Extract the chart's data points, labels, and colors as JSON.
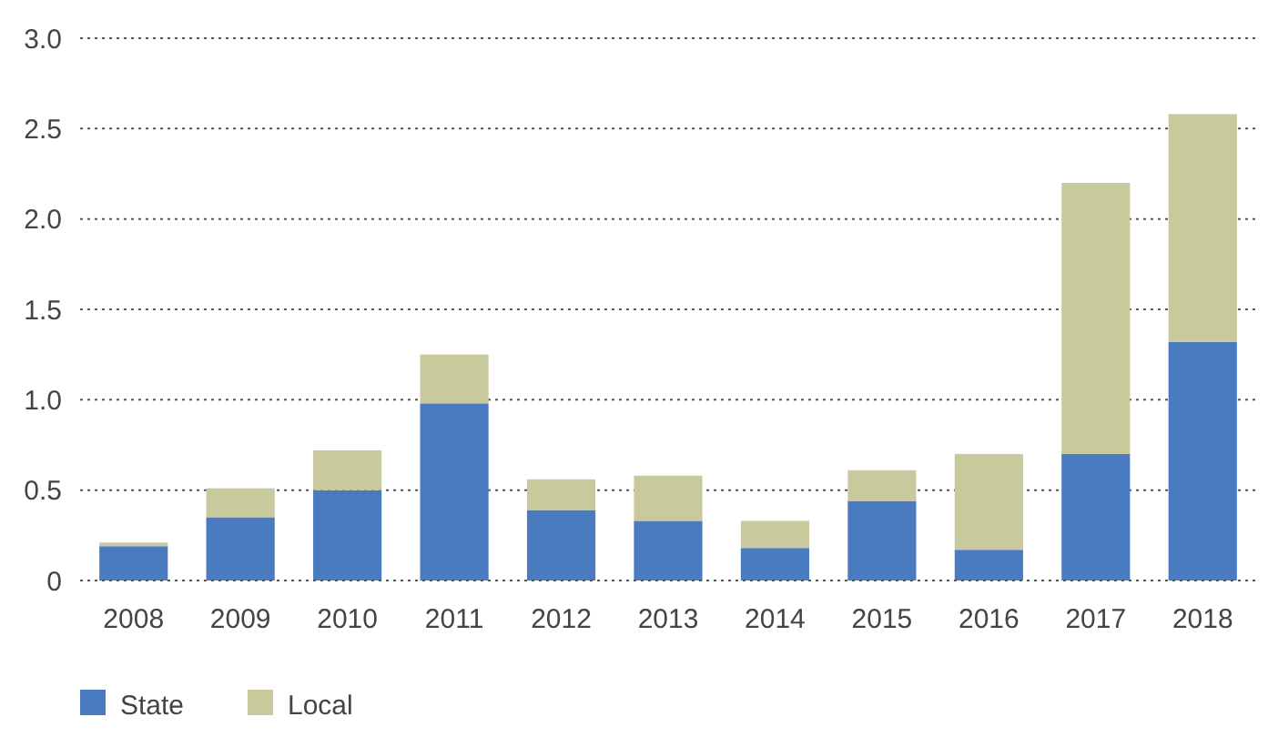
{
  "chart_data": {
    "type": "bar",
    "stacked": true,
    "categories": [
      "2008",
      "2009",
      "2010",
      "2011",
      "2012",
      "2013",
      "2014",
      "2015",
      "2016",
      "2017",
      "2018"
    ],
    "series": [
      {
        "name": "State",
        "color": "#4a7bc0",
        "values": [
          0.19,
          0.35,
          0.5,
          0.98,
          0.39,
          0.33,
          0.18,
          0.44,
          0.17,
          0.7,
          1.32
        ]
      },
      {
        "name": "Local",
        "color": "#c8c99c",
        "values": [
          0.02,
          0.16,
          0.22,
          0.27,
          0.17,
          0.25,
          0.15,
          0.17,
          0.53,
          1.5,
          1.26
        ]
      }
    ],
    "ylim": [
      0,
      3
    ],
    "yticks": [
      0,
      0.5,
      {
        "value": 1,
        "label": "1.0"
      },
      1.5,
      {
        "value": 2,
        "label": "2.0"
      },
      2.5,
      {
        "value": 3,
        "label": "3.0"
      }
    ],
    "grid": "y",
    "legend": "bottom left"
  }
}
